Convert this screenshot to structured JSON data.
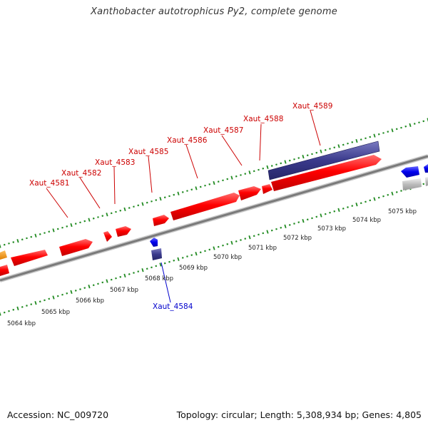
{
  "title": "Xanthobacter autotrophicus Py2, complete genome",
  "footer": {
    "accession": "Accession: NC_009720",
    "summary": "Topology: circular; Length: 5,308,934 bp; Genes: 4,805"
  },
  "colors": {
    "forward_gene": "#ff0000",
    "reverse_gene": "#0000ee",
    "rna_feature": "#3a3a8c",
    "pseudo_feature": "#bbbbbb",
    "partial_gene": "#ff9900",
    "tick": "#228b22",
    "backbone": "#8a8a8a"
  },
  "gene_labels": [
    {
      "id": "Xaut_4581",
      "strand": "+"
    },
    {
      "id": "Xaut_4582",
      "strand": "+"
    },
    {
      "id": "Xaut_4583",
      "strand": "+"
    },
    {
      "id": "Xaut_4585",
      "strand": "+"
    },
    {
      "id": "Xaut_4586",
      "strand": "+"
    },
    {
      "id": "Xaut_4587",
      "strand": "+"
    },
    {
      "id": "Xaut_4588",
      "strand": "+"
    },
    {
      "id": "Xaut_4589",
      "strand": "+"
    },
    {
      "id": "Xaut_4584",
      "strand": "-"
    }
  ],
  "scale_labels": [
    "5064 kbp",
    "5065 kbp",
    "5066 kbp",
    "5067 kbp",
    "5068 kbp",
    "5069 kbp",
    "5070 kbp",
    "5071 kbp",
    "5072 kbp",
    "5073 kbp",
    "5074 kbp",
    "5075 kbp"
  ]
}
